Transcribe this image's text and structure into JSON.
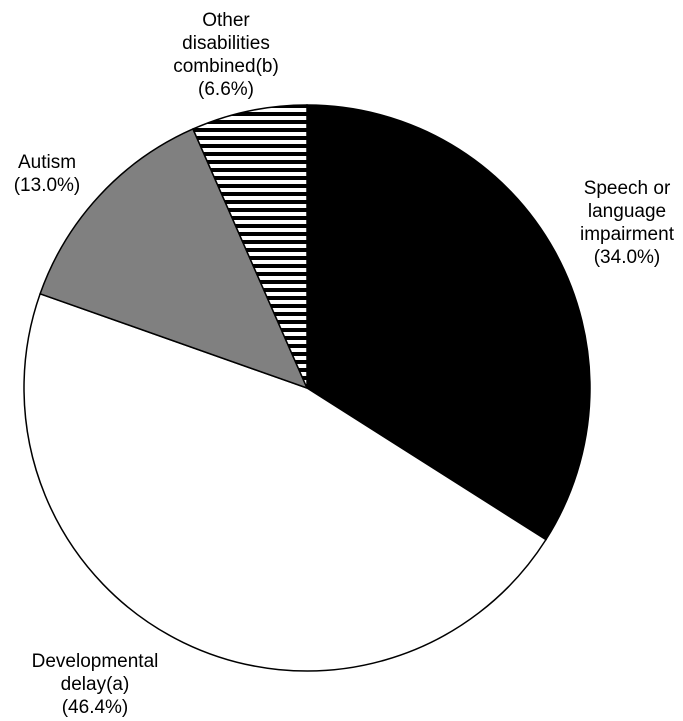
{
  "chart_data": {
    "type": "pie",
    "title": "",
    "start_angle_deg": 0,
    "direction": "clockwise",
    "slices": [
      {
        "label": [
          "Speech or",
          "language",
          "impairment"
        ],
        "percent_text": "(34.0%)",
        "value": 34.0,
        "color": "#000000",
        "pattern": "solid"
      },
      {
        "label": [
          "Developmental",
          "delay(a)"
        ],
        "percent_text": "(46.4%)",
        "value": 46.4,
        "color": "#ffffff",
        "pattern": "solid"
      },
      {
        "label": [
          "Autism"
        ],
        "percent_text": "(13.0%)",
        "value": 13.0,
        "color": "#808080",
        "pattern": "solid"
      },
      {
        "label": [
          "Other",
          "disabilities",
          "combined(b)"
        ],
        "percent_text": "(6.6%)",
        "value": 6.6,
        "color": "#000000",
        "pattern": "horizontal-stripes"
      }
    ]
  }
}
